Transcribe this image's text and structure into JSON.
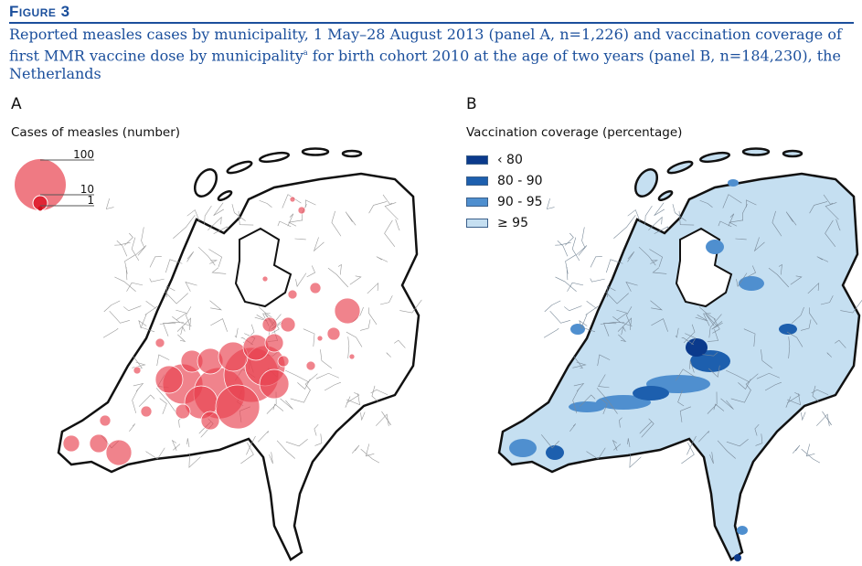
{
  "figure": {
    "label": "Figure 3",
    "caption_part1": "Reported measles cases by municipality, 1 May–28 August 2013 (panel A, n=1,226) and vaccination coverage of first MMR vaccine dose by municipality",
    "caption_sup": "a",
    "caption_part2": " for birth cohort 2010 at the age of two years (panel B, n=184,230), the Netherlands"
  },
  "panel_a": {
    "letter": "A",
    "legend_title": "Cases of measles (number)",
    "legend_sizes": [
      "100",
      "10",
      "1"
    ],
    "circle_color": "#e8414f"
  },
  "panel_b": {
    "letter": "B",
    "legend_title": "Vaccination coverage (percentage)",
    "legend": [
      {
        "label": "‹ 80",
        "color": "#0b3a8c"
      },
      {
        "label": "80 - 90",
        "color": "#1d5fae"
      },
      {
        "label": "90 - 95",
        "color": "#4f8fcf"
      },
      {
        "label": "≥ 95",
        "color": "#c5dff1"
      }
    ]
  }
}
